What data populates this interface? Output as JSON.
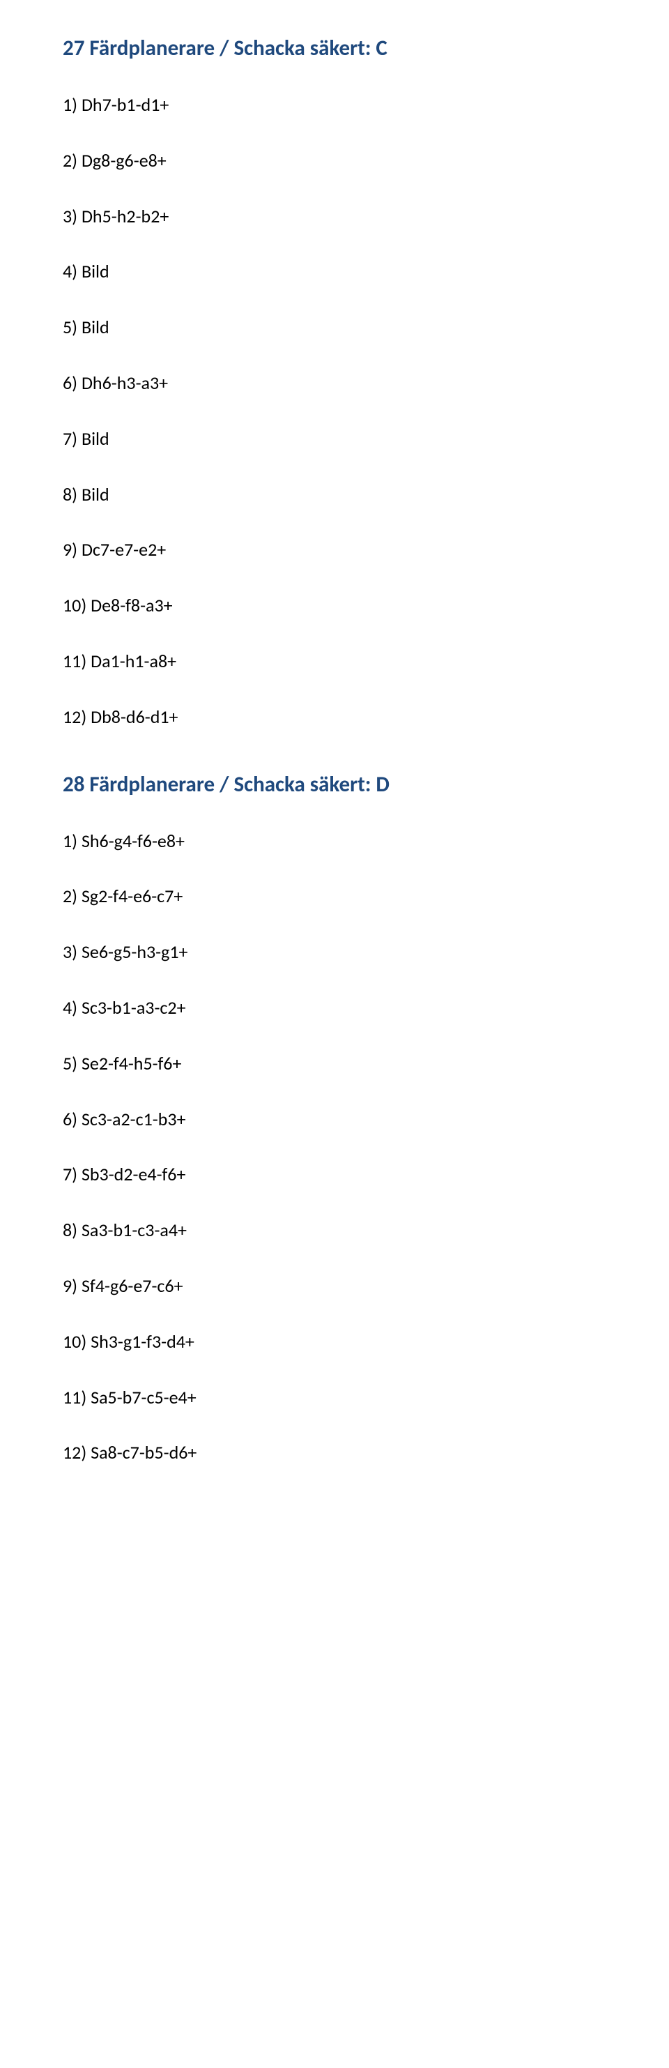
{
  "section1": {
    "title": "27 Färdplanerare / Schacka säkert: C",
    "title_color": "#1f497d",
    "title_fontsize": 31,
    "item_color": "#000000",
    "item_fontsize": 26,
    "items": [
      "1) Dh7-b1-d1+",
      "2) Dg8-g6-e8+",
      "3) Dh5-h2-b2+",
      "4) Bild",
      "5) Bild",
      "6) Dh6-h3-a3+",
      "7) Bild",
      "8) Bild",
      "9) Dc7-e7-e2+",
      "10) De8-f8-a3+",
      "11) Da1-h1-a8+",
      "12) Db8-d6-d1+"
    ]
  },
  "section2": {
    "title": "28 Färdplanerare / Schacka säkert: D",
    "title_color": "#1f497d",
    "title_fontsize": 31,
    "item_color": "#000000",
    "item_fontsize": 26,
    "items": [
      "1) Sh6-g4-f6-e8+",
      "2) Sg2-f4-e6-c7+",
      "3) Se6-g5-h3-g1+",
      "4) Sc3-b1-a3-c2+",
      "5) Se2-f4-h5-f6+",
      "6) Sc3-a2-c1-b3+",
      "7) Sb3-d2-e4-f6+",
      "8) Sa3-b1-c3-a4+",
      "9) Sf4-g6-e7-c6+",
      "10) Sh3-g1-f3-d4+",
      "11) Sa5-b7-c5-e4+",
      "12) Sa8-c7-b5-d6+"
    ]
  }
}
